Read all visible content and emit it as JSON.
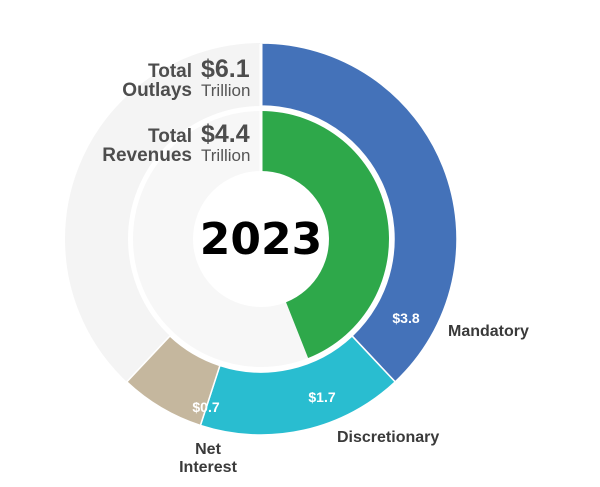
{
  "chart_data": {
    "type": "pie",
    "year_label": "2023",
    "colors": {
      "mandatory": "#4472b9",
      "discretionary": "#29bdd0",
      "net_interest": "#c5b79e",
      "revenues": "#2ea84a",
      "outlays_track": "#f4f4f4",
      "revenues_track": "#f7f7f7"
    },
    "outlays": {
      "label_lines": [
        "Total",
        "Outlays"
      ],
      "amount": "$6.1",
      "unit": "Trillion",
      "total": 6.1,
      "slices": [
        {
          "key": "mandatory",
          "name": "Mandatory",
          "value": 3.8,
          "value_label": "$3.8",
          "color": "#4472b9"
        },
        {
          "key": "discretionary",
          "name": "Discretionary",
          "value": 1.7,
          "value_label": "$1.7",
          "color": "#29bdd0"
        },
        {
          "key": "net_interest",
          "name_lines": [
            "Net",
            "Interest"
          ],
          "value": 0.7,
          "value_label": "$0.7",
          "color": "#c5b79e"
        }
      ]
    },
    "revenues": {
      "label_lines": [
        "Total",
        "Revenues"
      ],
      "amount": "$4.4",
      "unit": "Trillion",
      "value": 4.4,
      "color": "#2ea84a"
    }
  }
}
